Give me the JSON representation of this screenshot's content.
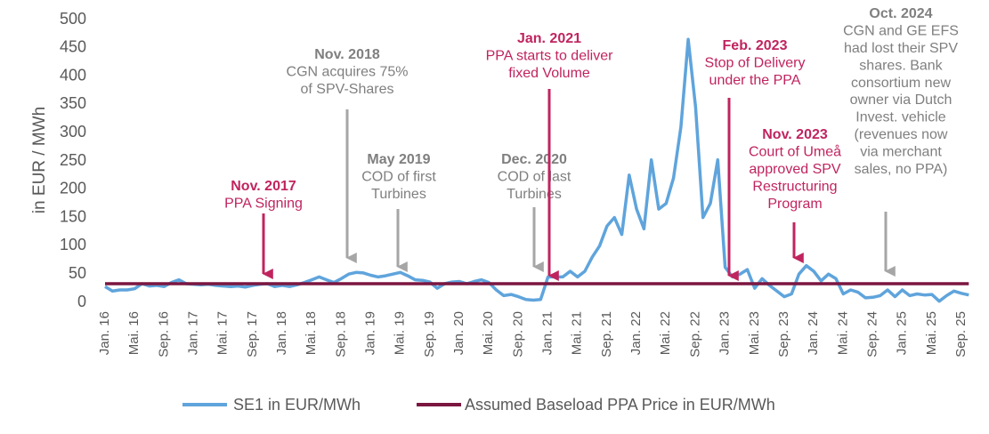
{
  "chart_data": {
    "type": "line",
    "y_label": "in EUR / MWh",
    "categories": [
      "Jan. 16",
      null,
      null,
      null,
      "Mai. 16",
      null,
      null,
      null,
      "Sep. 16",
      null,
      null,
      null,
      "Jan. 17",
      null,
      null,
      null,
      "Mai. 17",
      null,
      null,
      null,
      "Sep. 17",
      null,
      null,
      null,
      "Jan. 18",
      null,
      null,
      null,
      "Mai. 18",
      null,
      null,
      null,
      "Sep. 18",
      null,
      null,
      null,
      "Jan. 19",
      null,
      null,
      null,
      "Mai. 19",
      null,
      null,
      null,
      "Sep. 19",
      null,
      null,
      null,
      "Jan. 20",
      null,
      null,
      null,
      "Mai. 20",
      null,
      null,
      null,
      "Sep. 20",
      null,
      null,
      null,
      "Jan. 21",
      null,
      null,
      null,
      "Mai. 21",
      null,
      null,
      null,
      "Sep. 21",
      null,
      null,
      null,
      "Jan. 22",
      null,
      null,
      null,
      "Mai. 22",
      null,
      null,
      null,
      "Sep. 22",
      null,
      null,
      null,
      "Jan. 23",
      null,
      null,
      null,
      "Mai. 23",
      null,
      null,
      null,
      "Sep. 23",
      null,
      null,
      null,
      "Jan. 24",
      null,
      null,
      null,
      "Mai. 24",
      null,
      null,
      null,
      "Sep. 24",
      null,
      null,
      null,
      "Jan. 25",
      null,
      null,
      null,
      "Mai. 25",
      null,
      null,
      null,
      "Sep. 25",
      null
    ],
    "series": [
      {
        "name": "SE1 in EUR/MWh",
        "color": "#5fa4dc",
        "values": [
          28,
          20,
          22,
          22,
          24,
          33,
          29,
          30,
          28,
          35,
          40,
          33,
          32,
          31,
          32,
          30,
          29,
          28,
          29,
          27,
          30,
          32,
          33,
          28,
          30,
          28,
          31,
          35,
          40,
          45,
          40,
          35,
          42,
          50,
          53,
          52,
          48,
          45,
          47,
          50,
          53,
          47,
          40,
          39,
          36,
          25,
          33,
          36,
          37,
          33,
          37,
          40,
          35,
          22,
          12,
          14,
          10,
          5,
          4,
          5,
          45,
          45,
          45,
          55,
          45,
          55,
          80,
          100,
          135,
          150,
          120,
          225,
          165,
          130,
          252,
          165,
          175,
          220,
          310,
          465,
          345,
          150,
          175,
          252,
          62,
          45,
          50,
          58,
          25,
          42,
          30,
          20,
          10,
          15,
          50,
          65,
          55,
          38,
          50,
          42,
          15,
          22,
          18,
          8,
          9,
          12,
          22,
          10,
          22,
          12,
          15,
          13,
          14,
          2,
          12,
          20,
          16,
          13
        ]
      },
      {
        "name": "Assumed Baseload PPA Price in EUR/MWh",
        "color": "#7b1640",
        "values": [
          33,
          33,
          33,
          33,
          33,
          33,
          33,
          33,
          33,
          33,
          33,
          33,
          33,
          33,
          33,
          33,
          33,
          33,
          33,
          33,
          33,
          33,
          33,
          33,
          33,
          33,
          33,
          33,
          33,
          33,
          33,
          33,
          33,
          33,
          33,
          33,
          33,
          33,
          33,
          33,
          33,
          33,
          33,
          33,
          33,
          33,
          33,
          33,
          33,
          33,
          33,
          33,
          33,
          33,
          33,
          33,
          33,
          33,
          33,
          33,
          33,
          33,
          33,
          33,
          33,
          33,
          33,
          33,
          33,
          33,
          33,
          33,
          33,
          33,
          33,
          33,
          33,
          33,
          33,
          33,
          33,
          33,
          33,
          33,
          33,
          33,
          33,
          33,
          33,
          33,
          33,
          33,
          33,
          33,
          33,
          33,
          33,
          33,
          33,
          33,
          33,
          33,
          33,
          33,
          33,
          33,
          33,
          33,
          33,
          33,
          33,
          33,
          33,
          33,
          33,
          33,
          33,
          33
        ]
      }
    ],
    "ylim": [
      0,
      500
    ],
    "yticks": [
      0,
      50,
      100,
      150,
      200,
      250,
      300,
      350,
      400,
      450,
      500
    ],
    "annotations": [
      {
        "title": "Nov. 2017",
        "lines": [
          "PPA Signing"
        ]
      },
      {
        "title": "Nov. 2018",
        "lines": [
          "CGN acquires 75%",
          "of SPV-Shares"
        ]
      },
      {
        "title": "May 2019",
        "lines": [
          "COD of first",
          "Turbines"
        ]
      },
      {
        "title": "Dec. 2020",
        "lines": [
          "COD of last",
          "Turbines"
        ]
      },
      {
        "title": "Jan. 2021",
        "lines": [
          "PPA starts to deliver",
          "fixed Volume"
        ]
      },
      {
        "title": "Feb. 2023",
        "lines": [
          "Stop of Delivery",
          "under the PPA"
        ]
      },
      {
        "title": "Nov. 2023",
        "lines": [
          "Court of Umeå",
          "approved SPV",
          "Restructuring",
          "Program"
        ]
      },
      {
        "title": "Oct. 2024",
        "lines": [
          "CGN and GE EFS",
          "had lost their SPV",
          "shares. Bank",
          "consortium new",
          "owner via Dutch",
          "Invest. vehicle",
          "(revenues now",
          "via merchant",
          "sales, no PPA)"
        ]
      }
    ]
  }
}
